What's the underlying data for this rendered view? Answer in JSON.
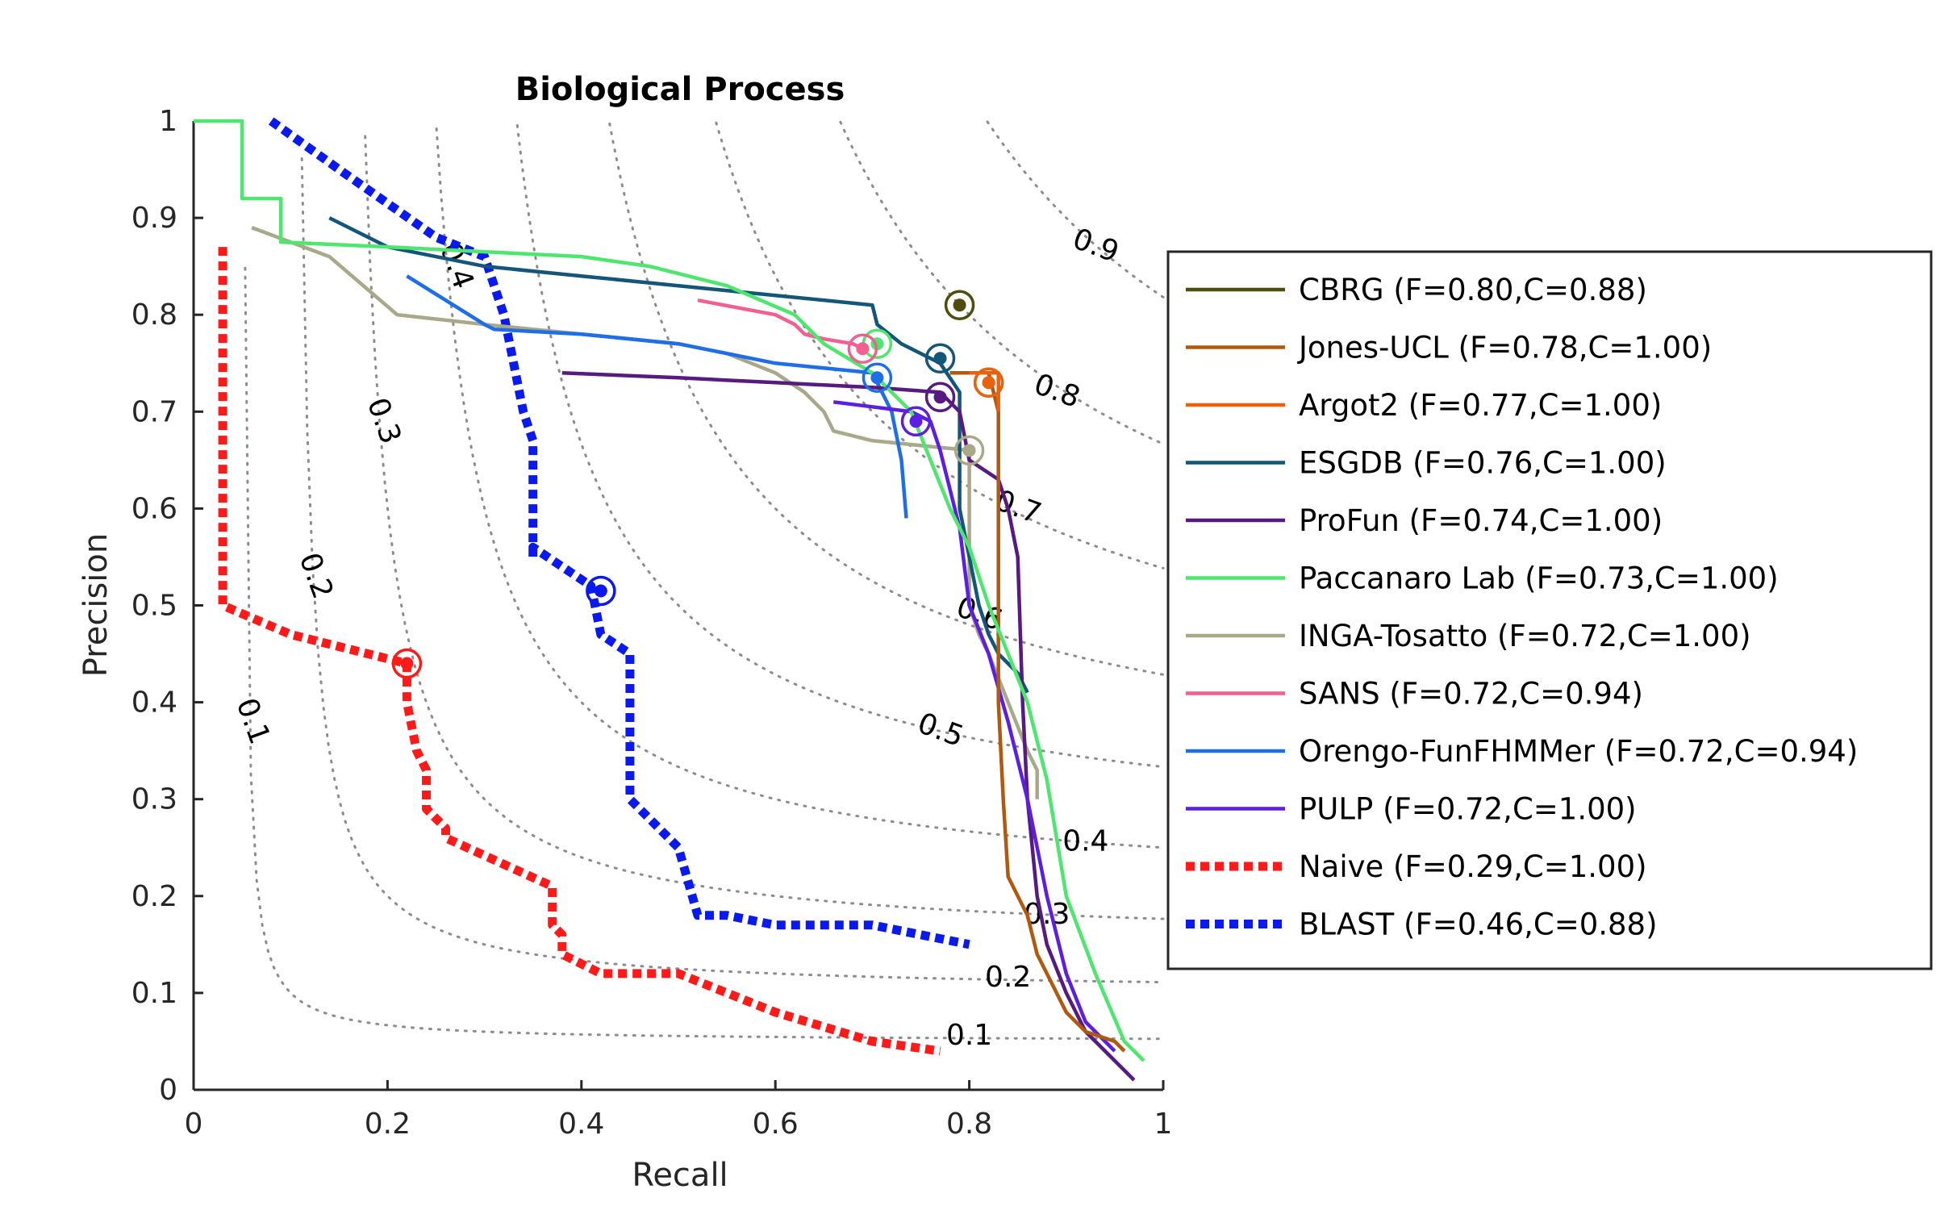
{
  "chart_data": {
    "type": "line",
    "title": "Biological Process",
    "xlabel": "Recall",
    "ylabel": "Precision",
    "xlim": [
      0,
      1
    ],
    "ylim": [
      0,
      1
    ],
    "xticks": [
      "0",
      "0.2",
      "0.4",
      "0.6",
      "0.8",
      "1"
    ],
    "yticks": [
      "0",
      "0.1",
      "0.2",
      "0.3",
      "0.4",
      "0.5",
      "0.6",
      "0.7",
      "0.8",
      "0.9",
      "1"
    ],
    "grid": "iso-F-measure contours",
    "legend_position": "right",
    "iso_f_contours": [
      {
        "f": 0.1,
        "label": "0.1",
        "label_pos": [
          0.8,
          0.055
        ]
      },
      {
        "f": 0.2,
        "label": "0.2",
        "label_pos": [
          0.84,
          0.115
        ]
      },
      {
        "f": 0.3,
        "label": "0.3",
        "label_pos": [
          0.88,
          0.18
        ]
      },
      {
        "f": 0.4,
        "label": "0.4",
        "label_pos": [
          0.92,
          0.255
        ]
      },
      {
        "f": 0.5,
        "label": "0.5",
        "label_pos": [
          0.77,
          0.37
        ]
      },
      {
        "f": 0.6,
        "label": "0.6",
        "label_pos": [
          0.81,
          0.49
        ]
      },
      {
        "f": 0.7,
        "label": "0.7",
        "label_pos": [
          0.85,
          0.6
        ]
      },
      {
        "f": 0.8,
        "label": "0.8",
        "label_pos": [
          0.89,
          0.72
        ]
      },
      {
        "f": 0.9,
        "label": "0.9",
        "label_pos": [
          0.93,
          0.87
        ]
      },
      {
        "f": 0.1,
        "label": "0.1",
        "label_pos": [
          0.06,
          0.38
        ],
        "rotated": true
      },
      {
        "f": 0.2,
        "label": "0.2",
        "label_pos": [
          0.125,
          0.53
        ],
        "rotated": true
      },
      {
        "f": 0.3,
        "label": "0.3",
        "label_pos": [
          0.195,
          0.69
        ],
        "rotated": true
      },
      {
        "f": 0.4,
        "label": "0.4",
        "label_pos": [
          0.27,
          0.85
        ],
        "rotated": true
      }
    ],
    "series": [
      {
        "name": "CBRG (F=0.80,C=0.88)",
        "color": "#4d4d0d",
        "dashed": false,
        "x": [],
        "y": [],
        "max_point": [
          0.79,
          0.81
        ]
      },
      {
        "name": "Jones-UCL (F=0.78,C=1.00)",
        "color": "#b05a10",
        "dashed": false,
        "x": [
          0.78,
          0.82,
          0.83,
          0.83,
          0.835,
          0.84,
          0.85,
          0.86,
          0.87,
          0.88,
          0.89,
          0.9,
          0.92,
          0.95,
          0.96
        ],
        "y": [
          0.74,
          0.74,
          0.7,
          0.4,
          0.3,
          0.22,
          0.2,
          0.18,
          0.14,
          0.12,
          0.1,
          0.08,
          0.06,
          0.05,
          0.04
        ],
        "max_point": [
          0.82,
          0.73
        ]
      },
      {
        "name": "Argot2 (F=0.77,C=1.00)",
        "color": "#e8620f",
        "dashed": false,
        "x": [
          0.8,
          0.82,
          0.83,
          0.83
        ],
        "y": [
          0.74,
          0.74,
          0.74,
          0.7
        ],
        "max_point": [
          0.82,
          0.73
        ]
      },
      {
        "name": "ESGDB (F=0.76,C=1.00)",
        "color": "#13567a",
        "dashed": false,
        "x": [
          0.14,
          0.2,
          0.3,
          0.4,
          0.5,
          0.6,
          0.7,
          0.705,
          0.73,
          0.77,
          0.79,
          0.79,
          0.8,
          0.81,
          0.82,
          0.83,
          0.85,
          0.86
        ],
        "y": [
          0.9,
          0.87,
          0.85,
          0.84,
          0.83,
          0.82,
          0.81,
          0.79,
          0.77,
          0.75,
          0.72,
          0.6,
          0.55,
          0.5,
          0.47,
          0.45,
          0.43,
          0.41
        ],
        "max_point": [
          0.77,
          0.755
        ]
      },
      {
        "name": "ProFun (F=0.74,C=1.00)",
        "color": "#561a80",
        "dashed": false,
        "x": [
          0.38,
          0.5,
          0.6,
          0.7,
          0.77,
          0.79,
          0.8,
          0.83,
          0.84,
          0.85,
          0.855,
          0.86,
          0.87,
          0.88,
          0.9,
          0.92,
          0.95,
          0.97
        ],
        "y": [
          0.74,
          0.735,
          0.73,
          0.725,
          0.72,
          0.7,
          0.65,
          0.63,
          0.6,
          0.55,
          0.4,
          0.3,
          0.2,
          0.15,
          0.1,
          0.06,
          0.03,
          0.01
        ],
        "max_point": [
          0.77,
          0.715
        ]
      },
      {
        "name": "Paccanaro Lab (F=0.73,C=1.00)",
        "color": "#4ee66e",
        "dashed": false,
        "x": [
          0.0,
          0.05,
          0.05,
          0.08,
          0.09,
          0.09,
          0.2,
          0.3,
          0.4,
          0.47,
          0.55,
          0.62,
          0.65,
          0.7,
          0.72,
          0.74,
          0.76,
          0.78,
          0.8,
          0.82,
          0.84,
          0.86,
          0.88,
          0.9,
          0.93,
          0.96,
          0.98
        ],
        "y": [
          1.0,
          1.0,
          0.92,
          0.92,
          0.92,
          0.875,
          0.87,
          0.865,
          0.86,
          0.85,
          0.83,
          0.8,
          0.77,
          0.74,
          0.72,
          0.7,
          0.65,
          0.6,
          0.56,
          0.5,
          0.45,
          0.4,
          0.32,
          0.2,
          0.12,
          0.05,
          0.03
        ],
        "max_point": [
          0.705,
          0.77
        ]
      },
      {
        "name": "INGA-Tosatto (F=0.72,C=1.00)",
        "color": "#a9a98a",
        "dashed": false,
        "x": [
          0.06,
          0.14,
          0.21,
          0.3,
          0.4,
          0.5,
          0.55,
          0.6,
          0.63,
          0.65,
          0.66,
          0.7,
          0.75,
          0.8,
          0.8,
          0.81,
          0.82,
          0.84,
          0.86,
          0.87,
          0.87
        ],
        "y": [
          0.89,
          0.86,
          0.8,
          0.79,
          0.78,
          0.77,
          0.76,
          0.74,
          0.72,
          0.7,
          0.68,
          0.67,
          0.665,
          0.66,
          0.5,
          0.47,
          0.45,
          0.4,
          0.35,
          0.33,
          0.3
        ],
        "max_point": [
          0.8,
          0.66
        ]
      },
      {
        "name": "SANS (F=0.72,C=0.94)",
        "color": "#f06090",
        "dashed": false,
        "x": [
          0.52,
          0.6,
          0.62,
          0.63,
          0.65,
          0.68,
          0.69
        ],
        "y": [
          0.815,
          0.8,
          0.79,
          0.78,
          0.775,
          0.77,
          0.765
        ],
        "max_point": [
          0.69,
          0.765
        ]
      },
      {
        "name": "Orengo-FunFHMMer (F=0.72,C=0.94)",
        "color": "#1e6ee8",
        "dashed": false,
        "x": [
          0.22,
          0.3,
          0.31,
          0.4,
          0.5,
          0.55,
          0.6,
          0.65,
          0.7,
          0.72,
          0.73,
          0.735
        ],
        "y": [
          0.84,
          0.79,
          0.785,
          0.78,
          0.77,
          0.76,
          0.75,
          0.745,
          0.74,
          0.7,
          0.65,
          0.59
        ],
        "max_point": [
          0.705,
          0.735
        ]
      },
      {
        "name": "PULP (F=0.72,C=1.00)",
        "color": "#5c1ee0",
        "dashed": false,
        "x": [
          0.66,
          0.7,
          0.74,
          0.76,
          0.77,
          0.78,
          0.79,
          0.8,
          0.82,
          0.84,
          0.86,
          0.88,
          0.9,
          0.92,
          0.95
        ],
        "y": [
          0.71,
          0.705,
          0.7,
          0.69,
          0.66,
          0.62,
          0.58,
          0.5,
          0.45,
          0.38,
          0.3,
          0.2,
          0.12,
          0.07,
          0.04
        ],
        "max_point": [
          0.745,
          0.69
        ]
      },
      {
        "name": "Naive (F=0.29,C=1.00)",
        "color": "#ff1a1a",
        "dashed": true,
        "x": [
          0.03,
          0.03,
          0.03,
          0.1,
          0.22,
          0.22,
          0.23,
          0.24,
          0.24,
          0.26,
          0.26,
          0.37,
          0.37,
          0.38,
          0.38,
          0.4,
          0.42,
          0.5,
          0.55,
          0.6,
          0.7,
          0.77
        ],
        "y": [
          0.87,
          0.6,
          0.5,
          0.47,
          0.44,
          0.4,
          0.35,
          0.33,
          0.29,
          0.27,
          0.26,
          0.21,
          0.17,
          0.16,
          0.14,
          0.13,
          0.12,
          0.12,
          0.1,
          0.08,
          0.05,
          0.04
        ],
        "max_point": [
          0.22,
          0.44
        ]
      },
      {
        "name": "BLAST (F=0.46,C=0.88)",
        "color": "#0a1aee",
        "dashed": true,
        "x": [
          0.08,
          0.15,
          0.25,
          0.3,
          0.32,
          0.33,
          0.34,
          0.35,
          0.35,
          0.35,
          0.35,
          0.41,
          0.42,
          0.45,
          0.45,
          0.5,
          0.52,
          0.55,
          0.6,
          0.7,
          0.8
        ],
        "y": [
          1.0,
          0.95,
          0.88,
          0.86,
          0.8,
          0.75,
          0.7,
          0.67,
          0.6,
          0.55,
          0.56,
          0.52,
          0.47,
          0.45,
          0.3,
          0.25,
          0.18,
          0.18,
          0.17,
          0.17,
          0.15
        ],
        "max_point": [
          0.42,
          0.515
        ]
      }
    ]
  }
}
